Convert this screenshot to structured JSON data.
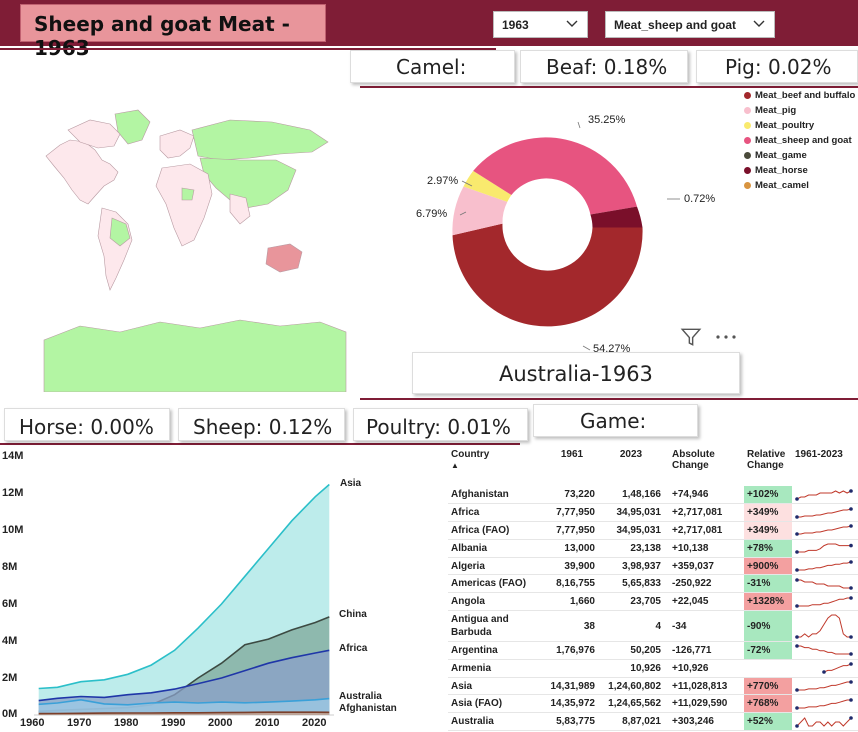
{
  "header": {
    "title": "Sheep and goat Meat - 1963",
    "year_select": "1963",
    "meat_select": "Meat_sheep and goat"
  },
  "kpis": {
    "camel": "Camel:",
    "beef": "Beaf: 0.18%",
    "pig": "Pig: 0.02%",
    "horse": "Horse: 0.00%",
    "sheep": "Sheep: 0.12%",
    "poultry": "Poultry: 0.01%",
    "game": "Game:"
  },
  "country_card": "Australia-1963",
  "icons": {
    "filter": "filter-icon",
    "more": "more-options-icon",
    "chevron": "chevron-down-icon",
    "sort": "sort-ascending-icon"
  },
  "colors": {
    "banner": "#7f1d36",
    "title_bg": "#e8959b",
    "map_highlight": "#b3f5a3",
    "map_base": "#fde8ec",
    "positive": "#a8e8bf",
    "negative": "#f3a0a0",
    "sparkline": "#c0392b"
  },
  "donut": {
    "legend": [
      {
        "name": "Meat_beef and buffalo",
        "color": "#a3282c"
      },
      {
        "name": "Meat_pig",
        "color": "#f8bfcd"
      },
      {
        "name": "Meat_poultry",
        "color": "#f9ea6e"
      },
      {
        "name": "Meat_sheep and goat",
        "color": "#e75480"
      },
      {
        "name": "Meat_game",
        "color": "#4a4a3a"
      },
      {
        "name": "Meat_horse",
        "color": "#7a0f2a"
      },
      {
        "name": "Meat_camel",
        "color": "#d89440"
      }
    ],
    "labels": {
      "sheep": "35.25%",
      "horse": "0.72%",
      "beef": "54.27%",
      "pig": "6.79%",
      "poultry": "2.97%"
    }
  },
  "chart_data": {
    "type": "area",
    "x": [
      1961,
      1965,
      1970,
      1975,
      1980,
      1985,
      1990,
      1995,
      2000,
      2005,
      2010,
      2015,
      2020,
      2023
    ],
    "xlabel": "",
    "ylabel": "",
    "xticks": [
      "1960",
      "1970",
      "1980",
      "1990",
      "2000",
      "2010",
      "2020"
    ],
    "yticks": [
      "0M",
      "2M",
      "4M",
      "6M",
      "8M",
      "10M",
      "12M",
      "14M"
    ],
    "xlim": [
      1960,
      2024
    ],
    "ylim": [
      0,
      14000000
    ],
    "series": [
      {
        "name": "Asia",
        "color": "#2bbfc9",
        "fill": "#a7e6e4",
        "values": [
          1430000,
          1500000,
          1800000,
          1900000,
          2200000,
          2700000,
          3500000,
          4700000,
          6000000,
          7500000,
          9000000,
          10500000,
          11800000,
          12460000
        ]
      },
      {
        "name": "China",
        "color": "#3c4a42",
        "fill": "#7fa89a",
        "values": [
          200000,
          250000,
          300000,
          350000,
          400000,
          550000,
          1100000,
          2000000,
          2800000,
          3800000,
          4100000,
          4600000,
          5000000,
          5300000
        ]
      },
      {
        "name": "Africa",
        "color": "#1f36a8",
        "fill": "#8aa0c8",
        "values": [
          780000,
          900000,
          1000000,
          950000,
          1100000,
          1200000,
          1400000,
          1700000,
          2000000,
          2400000,
          2800000,
          3100000,
          3350000,
          3500000
        ]
      },
      {
        "name": "Australia",
        "color": "#3aa0d8",
        "fill": "#9cc9e6",
        "values": [
          580000,
          650000,
          820000,
          600000,
          550000,
          650000,
          700000,
          650000,
          700000,
          660000,
          700000,
          750000,
          820000,
          887000
        ]
      },
      {
        "name": "Afghanistan",
        "color": "#7b3f2a",
        "fill": "#c89a80",
        "values": [
          73000,
          80000,
          90000,
          100000,
          110000,
          110000,
          120000,
          120000,
          130000,
          140000,
          150000,
          150000,
          150000,
          148000
        ]
      }
    ]
  },
  "table": {
    "columns": [
      "Country",
      "1961",
      "2023",
      "Absolute Change",
      "Relative Change",
      "1961-2023"
    ],
    "rows": [
      {
        "country": "Afghanistan",
        "y1961": "73,220",
        "y2023": "1,48,166",
        "abs": "+74,946",
        "rel": "+102%",
        "tone": "pos",
        "spark": [
          3,
          4,
          4,
          5,
          5,
          5,
          6,
          6,
          6,
          6,
          7,
          6,
          7,
          6,
          7
        ]
      },
      {
        "country": "Africa",
        "y1961": "7,77,950",
        "y2023": "34,95,031",
        "abs": "+2,717,081",
        "rel": "+349%",
        "tone": "pos-light",
        "spark": [
          1,
          1,
          2,
          2,
          2,
          3,
          3,
          4,
          5,
          5,
          6,
          7,
          8,
          8,
          9
        ]
      },
      {
        "country": "Africa (FAO)",
        "y1961": "7,77,950",
        "y2023": "34,95,031",
        "abs": "+2,717,081",
        "rel": "+349%",
        "tone": "pos-light",
        "spark": [
          1,
          1,
          2,
          2,
          2,
          3,
          3,
          4,
          5,
          5,
          6,
          7,
          8,
          8,
          9
        ]
      },
      {
        "country": "Albania",
        "y1961": "13,000",
        "y2023": "23,138",
        "abs": "+10,138",
        "rel": "+78%",
        "tone": "pos",
        "spark": [
          2,
          2,
          2,
          3,
          3,
          3,
          4,
          6,
          7,
          7,
          7,
          6,
          6,
          6,
          6
        ]
      },
      {
        "country": "Algeria",
        "y1961": "39,900",
        "y2023": "3,98,937",
        "abs": "+359,037",
        "rel": "+900%",
        "tone": "neg",
        "spark": [
          1,
          1,
          1,
          2,
          2,
          3,
          3,
          4,
          5,
          5,
          6,
          6,
          7,
          7,
          8
        ]
      },
      {
        "country": "Americas (FAO)",
        "y1961": "8,16,755",
        "y2023": "5,65,833",
        "abs": "-250,922",
        "rel": "-31%",
        "tone": "pos",
        "spark": [
          7,
          7,
          6,
          6,
          6,
          5,
          5,
          5,
          4,
          4,
          4,
          4,
          3,
          3,
          3
        ]
      },
      {
        "country": "Angola",
        "y1961": "1,660",
        "y2023": "23,705",
        "abs": "+22,045",
        "rel": "+1328%",
        "tone": "neg",
        "spark": [
          1,
          1,
          1,
          1,
          2,
          2,
          2,
          3,
          3,
          4,
          5,
          6,
          6,
          7,
          7
        ]
      },
      {
        "country": "Antigua and Barbuda",
        "y1961": "38",
        "y2023": "4",
        "abs": "-34",
        "rel": "-90%",
        "tone": "pos",
        "spark": [
          2,
          2,
          3,
          2,
          3,
          3,
          4,
          6,
          8,
          9,
          9,
          8,
          3,
          2,
          2
        ]
      },
      {
        "country": "Argentina",
        "y1961": "1,76,976",
        "y2023": "50,205",
        "abs": "-126,771",
        "rel": "-72%",
        "tone": "pos",
        "spark": [
          8,
          8,
          7,
          7,
          6,
          6,
          5,
          5,
          4,
          4,
          3,
          3,
          3,
          3,
          3
        ]
      },
      {
        "country": "Armenia",
        "y1961": "",
        "y2023": "10,926",
        "abs": "+10,926",
        "rel": "",
        "tone": "none",
        "spark": [
          null,
          null,
          null,
          null,
          null,
          null,
          null,
          2,
          3,
          3,
          4,
          5,
          6,
          6,
          7
        ]
      },
      {
        "country": "Asia",
        "y1961": "14,31,989",
        "y2023": "1,24,60,802",
        "abs": "+11,028,813",
        "rel": "+770%",
        "tone": "neg",
        "spark": [
          1,
          1,
          1,
          2,
          2,
          2,
          3,
          3,
          4,
          5,
          5,
          6,
          7,
          8,
          8
        ]
      },
      {
        "country": "Asia (FAO)",
        "y1961": "14,35,972",
        "y2023": "1,24,65,562",
        "abs": "+11,029,590",
        "rel": "+768%",
        "tone": "neg",
        "spark": [
          1,
          1,
          1,
          2,
          2,
          2,
          3,
          3,
          4,
          5,
          5,
          6,
          7,
          8,
          8
        ]
      },
      {
        "country": "Australia",
        "y1961": "5,83,775",
        "y2023": "8,87,021",
        "abs": "+303,246",
        "rel": "+52%",
        "tone": "pos",
        "spark": [
          5,
          6,
          7,
          5,
          5,
          6,
          6,
          5,
          6,
          5,
          6,
          6,
          5,
          6,
          7
        ]
      }
    ]
  }
}
